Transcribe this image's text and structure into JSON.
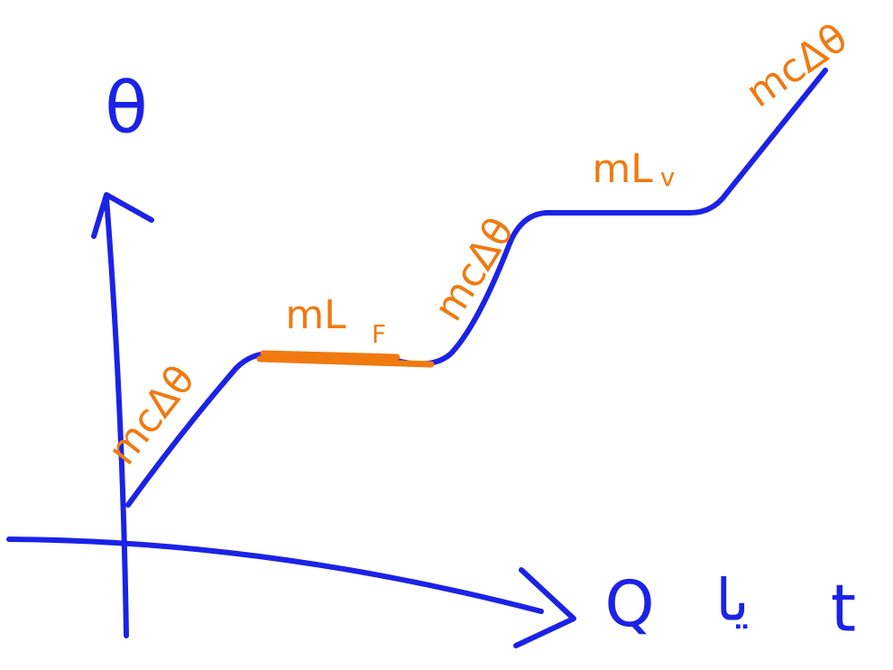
{
  "axes": {
    "y_label": "θ",
    "x_label": [
      "Q",
      "یا",
      "t"
    ]
  },
  "segments": [
    {
      "label": "mcΔθ"
    },
    {
      "label": "mL",
      "subscript": "F"
    },
    {
      "label": "mcΔθ"
    },
    {
      "label": "mL",
      "subscript": "v"
    },
    {
      "label": "mcΔθ"
    }
  ]
}
